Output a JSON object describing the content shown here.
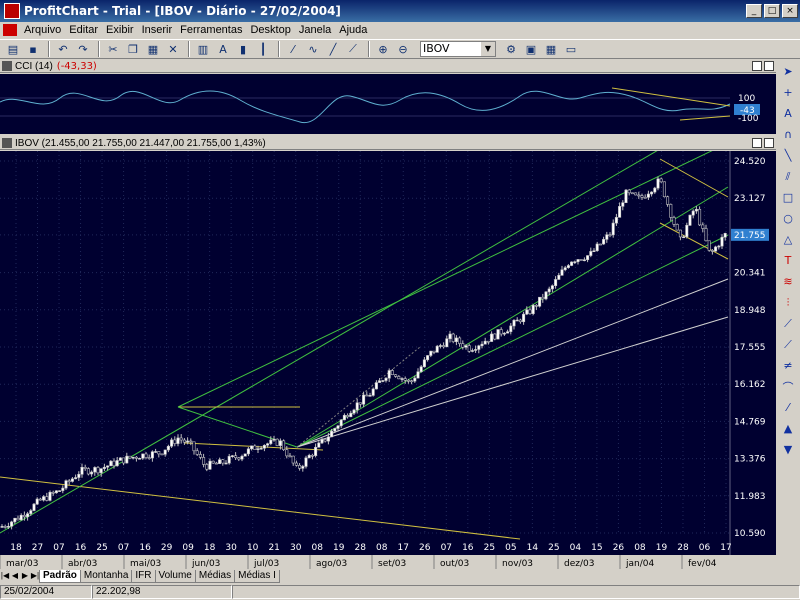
{
  "window": {
    "title": "ProfitChart - Trial - [IBOV - Diário - 27/02/2004]",
    "min": "_",
    "max": "□",
    "close": "×"
  },
  "menu": [
    "Arquivo",
    "Editar",
    "Exibir",
    "Inserir",
    "Ferramentas",
    "Desktop",
    "Janela",
    "Ajuda"
  ],
  "toolbar": {
    "symbol": "IBOV"
  },
  "cci_panel": {
    "label": "CCI (14)",
    "value": "(-43,33)",
    "axis": [
      "100",
      "-100"
    ],
    "current": "-43"
  },
  "price_panel": {
    "label": "IBOV (21.455,00  21.755,00  21.447,00  21.755,00  1,43%)"
  },
  "chart_data": {
    "type": "candlestick",
    "price_axis": [
      "24.520",
      "23.127",
      "21.755",
      "20.341",
      "18.948",
      "17.555",
      "16.162",
      "14.769",
      "13.376",
      "11.983",
      "10.590"
    ],
    "current_price": "21.755",
    "ylim": [
      10590,
      24520
    ],
    "day_ticks": [
      "18",
      "27",
      "07",
      "16",
      "25",
      "07",
      "16",
      "29",
      "09",
      "18",
      "30",
      "10",
      "21",
      "30",
      "08",
      "19",
      "28",
      "08",
      "17",
      "26",
      "07",
      "16",
      "25",
      "05",
      "14",
      "25",
      "04",
      "15",
      "26",
      "08",
      "19",
      "28",
      "06",
      "17"
    ],
    "months": [
      "mar/03",
      "abr/03",
      "mai/03",
      "jun/03",
      "jul/03",
      "ago/03",
      "set/03",
      "out/03",
      "nov/03",
      "dez/03",
      "jan/04",
      "fev/04"
    ],
    "close_path": [
      [
        0,
        10800
      ],
      [
        20,
        11200
      ],
      [
        40,
        11800
      ],
      [
        60,
        12200
      ],
      [
        80,
        12900
      ],
      [
        100,
        13000
      ],
      [
        120,
        13300
      ],
      [
        140,
        13500
      ],
      [
        160,
        13600
      ],
      [
        178,
        14150
      ],
      [
        190,
        13900
      ],
      [
        205,
        13100
      ],
      [
        220,
        13200
      ],
      [
        240,
        13500
      ],
      [
        260,
        13900
      ],
      [
        280,
        14000
      ],
      [
        297,
        12950
      ],
      [
        310,
        13500
      ],
      [
        330,
        14300
      ],
      [
        350,
        15200
      ],
      [
        370,
        15800
      ],
      [
        390,
        16700
      ],
      [
        410,
        16200
      ],
      [
        430,
        17300
      ],
      [
        450,
        17900
      ],
      [
        470,
        17500
      ],
      [
        490,
        17900
      ],
      [
        510,
        18300
      ],
      [
        530,
        18900
      ],
      [
        550,
        19700
      ],
      [
        570,
        20800
      ],
      [
        590,
        21000
      ],
      [
        610,
        21800
      ],
      [
        625,
        23300
      ],
      [
        640,
        23100
      ],
      [
        660,
        23800
      ],
      [
        680,
        21500
      ],
      [
        695,
        22800
      ],
      [
        710,
        21000
      ],
      [
        725,
        21755
      ]
    ]
  },
  "tabs": [
    "Padrão",
    "Montanha",
    "IFR",
    "Volume",
    "Médias",
    "Médias I"
  ],
  "status": {
    "date": "25/02/2004",
    "value": "22.202,98"
  }
}
